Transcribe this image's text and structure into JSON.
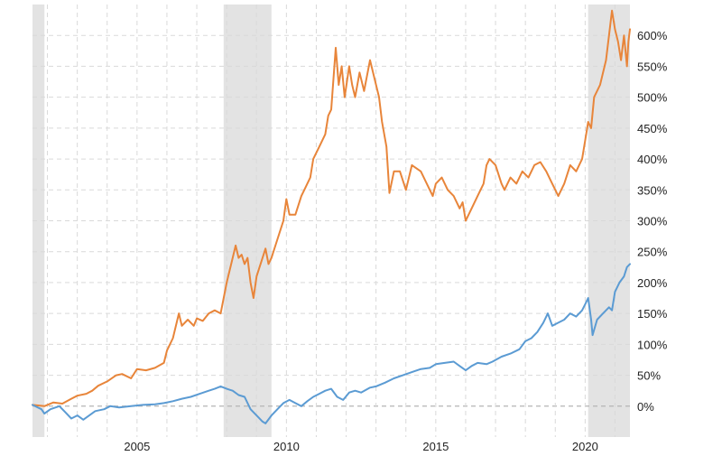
{
  "chart_data": {
    "type": "line",
    "title": "",
    "xlabel": "",
    "ylabel": "",
    "xlim": [
      2001.5,
      2021.5
    ],
    "ylim": [
      -50,
      650
    ],
    "x_ticks": [
      2005,
      2010,
      2015,
      2020
    ],
    "x_tick_labels": [
      "2005",
      "2010",
      "2015",
      "2020"
    ],
    "y_ticks": [
      0,
      50,
      100,
      150,
      200,
      250,
      300,
      350,
      400,
      450,
      500,
      550,
      600
    ],
    "y_tick_labels": [
      "0%",
      "50%",
      "100%",
      "150%",
      "200%",
      "250%",
      "300%",
      "350%",
      "400%",
      "450%",
      "500%",
      "550%",
      "600%"
    ],
    "y_axis_position": "right",
    "grid": true,
    "legend": "none",
    "recessions": [
      [
        2001.2,
        2001.9
      ],
      [
        2007.9,
        2009.5
      ],
      [
        2020.1,
        2021.5
      ]
    ],
    "series": [
      {
        "color": "#e8853a",
        "points": [
          [
            2001.5,
            2
          ],
          [
            2001.9,
            0
          ],
          [
            2002.2,
            6
          ],
          [
            2002.5,
            4
          ],
          [
            2002.8,
            12
          ],
          [
            2003.0,
            17
          ],
          [
            2003.3,
            20
          ],
          [
            2003.5,
            25
          ],
          [
            2003.7,
            33
          ],
          [
            2004.0,
            40
          ],
          [
            2004.3,
            50
          ],
          [
            2004.5,
            52
          ],
          [
            2004.8,
            45
          ],
          [
            2005.0,
            60
          ],
          [
            2005.3,
            58
          ],
          [
            2005.6,
            62
          ],
          [
            2005.9,
            70
          ],
          [
            2006.0,
            90
          ],
          [
            2006.2,
            110
          ],
          [
            2006.4,
            150
          ],
          [
            2006.5,
            130
          ],
          [
            2006.7,
            140
          ],
          [
            2006.9,
            130
          ],
          [
            2007.0,
            142
          ],
          [
            2007.2,
            138
          ],
          [
            2007.4,
            150
          ],
          [
            2007.6,
            155
          ],
          [
            2007.8,
            150
          ],
          [
            2008.0,
            200
          ],
          [
            2008.2,
            240
          ],
          [
            2008.3,
            260
          ],
          [
            2008.4,
            240
          ],
          [
            2008.5,
            245
          ],
          [
            2008.6,
            230
          ],
          [
            2008.7,
            240
          ],
          [
            2008.8,
            200
          ],
          [
            2008.9,
            175
          ],
          [
            2009.0,
            210
          ],
          [
            2009.2,
            240
          ],
          [
            2009.3,
            255
          ],
          [
            2009.4,
            230
          ],
          [
            2009.5,
            240
          ],
          [
            2009.7,
            270
          ],
          [
            2009.9,
            300
          ],
          [
            2010.0,
            335
          ],
          [
            2010.1,
            310
          ],
          [
            2010.3,
            310
          ],
          [
            2010.5,
            340
          ],
          [
            2010.6,
            350
          ],
          [
            2010.8,
            370
          ],
          [
            2010.9,
            400
          ],
          [
            2011.1,
            420
          ],
          [
            2011.3,
            440
          ],
          [
            2011.4,
            470
          ],
          [
            2011.5,
            480
          ],
          [
            2011.65,
            580
          ],
          [
            2011.75,
            520
          ],
          [
            2011.85,
            550
          ],
          [
            2011.95,
            500
          ],
          [
            2012.1,
            550
          ],
          [
            2012.2,
            520
          ],
          [
            2012.3,
            500
          ],
          [
            2012.45,
            540
          ],
          [
            2012.6,
            510
          ],
          [
            2012.8,
            560
          ],
          [
            2012.95,
            530
          ],
          [
            2013.1,
            500
          ],
          [
            2013.2,
            460
          ],
          [
            2013.35,
            420
          ],
          [
            2013.45,
            345
          ],
          [
            2013.6,
            380
          ],
          [
            2013.8,
            380
          ],
          [
            2014.0,
            350
          ],
          [
            2014.2,
            390
          ],
          [
            2014.5,
            380
          ],
          [
            2014.7,
            360
          ],
          [
            2014.9,
            340
          ],
          [
            2015.0,
            360
          ],
          [
            2015.2,
            370
          ],
          [
            2015.4,
            350
          ],
          [
            2015.6,
            340
          ],
          [
            2015.8,
            320
          ],
          [
            2015.9,
            330
          ],
          [
            2016.0,
            300
          ],
          [
            2016.2,
            320
          ],
          [
            2016.4,
            340
          ],
          [
            2016.6,
            360
          ],
          [
            2016.7,
            390
          ],
          [
            2016.8,
            400
          ],
          [
            2017.0,
            390
          ],
          [
            2017.2,
            360
          ],
          [
            2017.3,
            350
          ],
          [
            2017.5,
            370
          ],
          [
            2017.7,
            360
          ],
          [
            2017.9,
            380
          ],
          [
            2018.1,
            370
          ],
          [
            2018.3,
            390
          ],
          [
            2018.5,
            395
          ],
          [
            2018.7,
            380
          ],
          [
            2018.9,
            360
          ],
          [
            2019.1,
            340
          ],
          [
            2019.3,
            360
          ],
          [
            2019.5,
            390
          ],
          [
            2019.7,
            380
          ],
          [
            2019.9,
            400
          ],
          [
            2020.0,
            430
          ],
          [
            2020.1,
            460
          ],
          [
            2020.2,
            450
          ],
          [
            2020.3,
            500
          ],
          [
            2020.5,
            520
          ],
          [
            2020.7,
            560
          ],
          [
            2020.8,
            600
          ],
          [
            2020.9,
            640
          ],
          [
            2021.0,
            610
          ],
          [
            2021.1,
            590
          ],
          [
            2021.2,
            560
          ],
          [
            2021.3,
            600
          ],
          [
            2021.4,
            550
          ],
          [
            2021.45,
            590
          ],
          [
            2021.5,
            610
          ]
        ]
      },
      {
        "color": "#5b9bd3",
        "points": [
          [
            2001.5,
            2
          ],
          [
            2001.8,
            -5
          ],
          [
            2001.9,
            -12
          ],
          [
            2002.1,
            -5
          ],
          [
            2002.4,
            0
          ],
          [
            2002.6,
            -10
          ],
          [
            2002.8,
            -20
          ],
          [
            2003.0,
            -15
          ],
          [
            2003.2,
            -22
          ],
          [
            2003.4,
            -15
          ],
          [
            2003.6,
            -8
          ],
          [
            2003.9,
            -5
          ],
          [
            2004.1,
            0
          ],
          [
            2004.4,
            -2
          ],
          [
            2004.8,
            0
          ],
          [
            2005.2,
            2
          ],
          [
            2005.6,
            3
          ],
          [
            2005.9,
            5
          ],
          [
            2006.2,
            8
          ],
          [
            2006.5,
            12
          ],
          [
            2006.8,
            15
          ],
          [
            2007.1,
            20
          ],
          [
            2007.4,
            25
          ],
          [
            2007.6,
            28
          ],
          [
            2007.8,
            32
          ],
          [
            2008.0,
            28
          ],
          [
            2008.2,
            25
          ],
          [
            2008.4,
            18
          ],
          [
            2008.6,
            15
          ],
          [
            2008.8,
            -5
          ],
          [
            2009.0,
            -15
          ],
          [
            2009.2,
            -25
          ],
          [
            2009.3,
            -28
          ],
          [
            2009.5,
            -15
          ],
          [
            2009.7,
            -5
          ],
          [
            2009.9,
            5
          ],
          [
            2010.1,
            10
          ],
          [
            2010.3,
            5
          ],
          [
            2010.5,
            0
          ],
          [
            2010.7,
            8
          ],
          [
            2010.9,
            15
          ],
          [
            2011.1,
            20
          ],
          [
            2011.3,
            25
          ],
          [
            2011.5,
            28
          ],
          [
            2011.7,
            15
          ],
          [
            2011.9,
            10
          ],
          [
            2012.1,
            22
          ],
          [
            2012.3,
            25
          ],
          [
            2012.5,
            22
          ],
          [
            2012.8,
            30
          ],
          [
            2013.0,
            32
          ],
          [
            2013.3,
            38
          ],
          [
            2013.6,
            45
          ],
          [
            2013.9,
            50
          ],
          [
            2014.2,
            55
          ],
          [
            2014.5,
            60
          ],
          [
            2014.8,
            62
          ],
          [
            2015.0,
            68
          ],
          [
            2015.3,
            70
          ],
          [
            2015.6,
            72
          ],
          [
            2015.8,
            65
          ],
          [
            2016.0,
            58
          ],
          [
            2016.2,
            65
          ],
          [
            2016.4,
            70
          ],
          [
            2016.7,
            68
          ],
          [
            2016.9,
            72
          ],
          [
            2017.2,
            80
          ],
          [
            2017.5,
            85
          ],
          [
            2017.8,
            92
          ],
          [
            2018.0,
            105
          ],
          [
            2018.2,
            110
          ],
          [
            2018.4,
            120
          ],
          [
            2018.6,
            135
          ],
          [
            2018.75,
            150
          ],
          [
            2018.9,
            130
          ],
          [
            2019.1,
            135
          ],
          [
            2019.3,
            140
          ],
          [
            2019.5,
            150
          ],
          [
            2019.7,
            145
          ],
          [
            2019.9,
            155
          ],
          [
            2020.0,
            165
          ],
          [
            2020.1,
            175
          ],
          [
            2020.2,
            140
          ],
          [
            2020.25,
            115
          ],
          [
            2020.4,
            140
          ],
          [
            2020.6,
            150
          ],
          [
            2020.8,
            160
          ],
          [
            2020.9,
            155
          ],
          [
            2021.0,
            185
          ],
          [
            2021.15,
            200
          ],
          [
            2021.3,
            210
          ],
          [
            2021.4,
            225
          ],
          [
            2021.5,
            230
          ]
        ]
      }
    ]
  }
}
